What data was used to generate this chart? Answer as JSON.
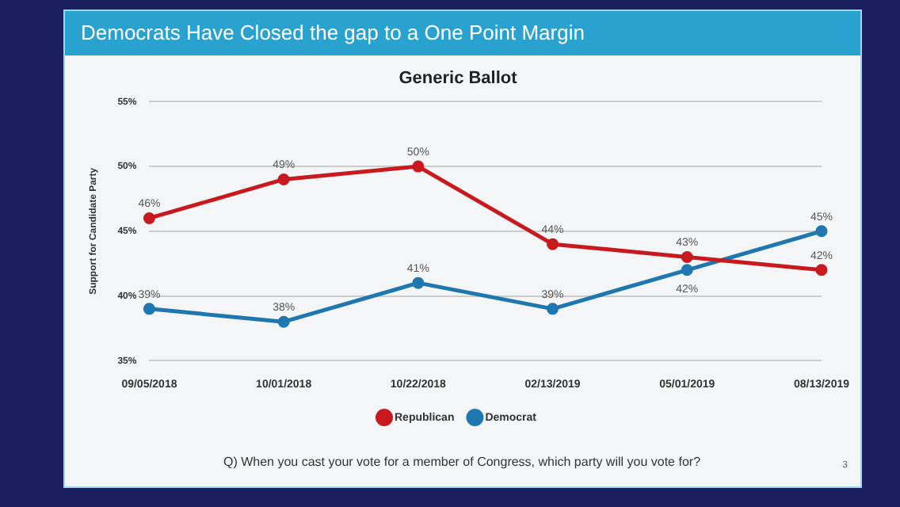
{
  "chart_data": {
    "type": "line",
    "title": "Democrats Have Closed the gap to a One Point Margin",
    "subtitle": "Generic Ballot",
    "ylabel": "Support for Candidate Party",
    "categories": [
      "09/05/2018",
      "10/01/2018",
      "10/22/2018",
      "02/13/2019",
      "05/01/2019",
      "08/13/2019"
    ],
    "series": [
      {
        "name": "Republican",
        "color": "#c8191e",
        "values": [
          46,
          49,
          50,
          44,
          43,
          42
        ],
        "value_labels": [
          "46%",
          "49%",
          "50%",
          "44%",
          "43%",
          "42%"
        ]
      },
      {
        "name": "Democrat",
        "color": "#1f77b0",
        "values": [
          39,
          38,
          41,
          39,
          42,
          45
        ],
        "value_labels": [
          "39%",
          "38%",
          "41%",
          "39%",
          "42%",
          "45%"
        ]
      }
    ],
    "ylim": [
      35,
      55
    ],
    "yticks": [
      {
        "value": 35,
        "label": "35%"
      },
      {
        "value": 40,
        "label": "40%"
      },
      {
        "value": 45,
        "label": "45%"
      },
      {
        "value": 50,
        "label": "50%"
      },
      {
        "value": 55,
        "label": "55%"
      }
    ],
    "grid": "y",
    "legend": "bottom",
    "marker": "circle",
    "line_style": "solid",
    "annotations": [
      "Q) When you cast your vote for a member of Congress, which party will you vote for?",
      "3"
    ]
  }
}
